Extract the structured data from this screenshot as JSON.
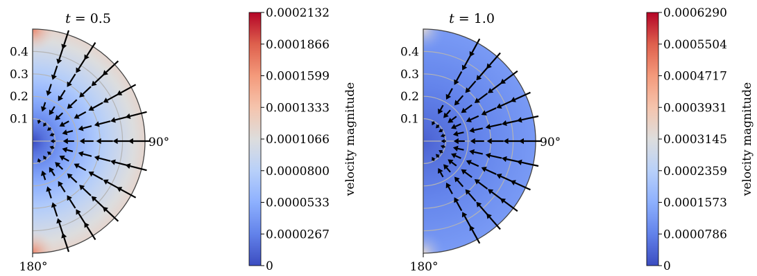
{
  "chart_data": [
    {
      "type": "polar-heatmap-quiver",
      "title": "t = 0.5",
      "title_var": "t",
      "title_value": "0.5",
      "radial_ticks": [
        "0.1",
        "0.2",
        "0.3",
        "0.4"
      ],
      "radial_tick_values": [
        0.1,
        0.2,
        0.3,
        0.4
      ],
      "rlim": [
        0,
        0.5
      ],
      "angle_labels": [
        "90°",
        "180°"
      ],
      "angular_range_deg": [
        0,
        180
      ],
      "grid": true,
      "colormap": "coolwarm",
      "colorbar": {
        "label": "velocity magnitude",
        "range": [
          0,
          0.0002132
        ],
        "ticks": [
          "0",
          "0.0000267",
          "0.0000533",
          "0.0000800",
          "0.0001066",
          "0.0001333",
          "0.0001599",
          "0.0001866",
          "0.0002132"
        ]
      },
      "field_description": {
        "center_value": 0.0,
        "outer_value": 0.000115,
        "pole_value": 0.00017,
        "arrows_direction": "inward",
        "arrow_pole_inset": 0.1
      }
    },
    {
      "type": "polar-heatmap-quiver",
      "title": "t = 1.0",
      "title_var": "t",
      "title_value": "1.0",
      "radial_ticks": [
        "0.1",
        "0.2",
        "0.3",
        "0.4"
      ],
      "radial_tick_values": [
        0.1,
        0.2,
        0.3,
        0.4
      ],
      "rlim": [
        0,
        0.5
      ],
      "angle_labels": [
        "90°",
        "180°"
      ],
      "angular_range_deg": [
        0,
        180
      ],
      "grid": true,
      "colormap": "coolwarm",
      "colorbar": {
        "label": "velocity magnitude",
        "range": [
          0,
          0.000629
        ],
        "ticks": [
          "0",
          "0.0000786",
          "0.0001573",
          "0.0002359",
          "0.0003145",
          "0.0003931",
          "0.0004717",
          "0.0005504",
          "0.0006290"
        ]
      },
      "field_description": {
        "center_value": 3e-05,
        "outer_value": 0.00012,
        "pole_value": 0.00033,
        "arrows_direction": "inward",
        "arrow_pole_inset": 0.16
      }
    }
  ],
  "colors": {
    "arrow": "#000000",
    "grid": "#b4b4b4",
    "boundary": "#444444"
  }
}
